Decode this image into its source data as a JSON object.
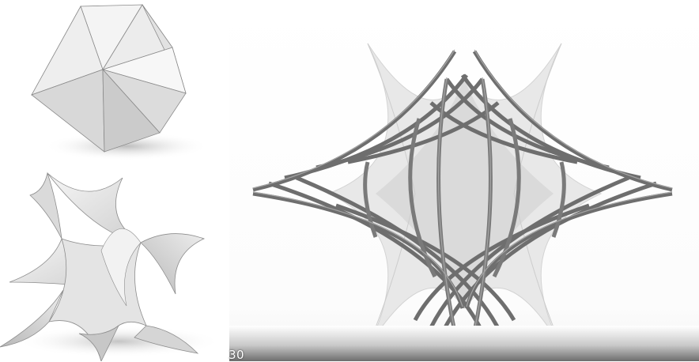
{
  "panels": [
    {
      "name": "icosahedron-render",
      "shading": "flat-faceted"
    },
    {
      "name": "minimal-surface-render",
      "shading": "smooth-curved"
    },
    {
      "name": "gridshell-top-view",
      "shading": "translucent-membrane-with-rods"
    }
  ],
  "overlay": {
    "timestamp_fragment": "30"
  },
  "colors": {
    "background": "#ffffff",
    "surface_light": "#f2f2f2",
    "surface_mid": "#d6d6d6",
    "surface_dark": "#a9a9a9",
    "rod": "#6e6e6e",
    "rod_highlight": "#9a9a9a"
  }
}
